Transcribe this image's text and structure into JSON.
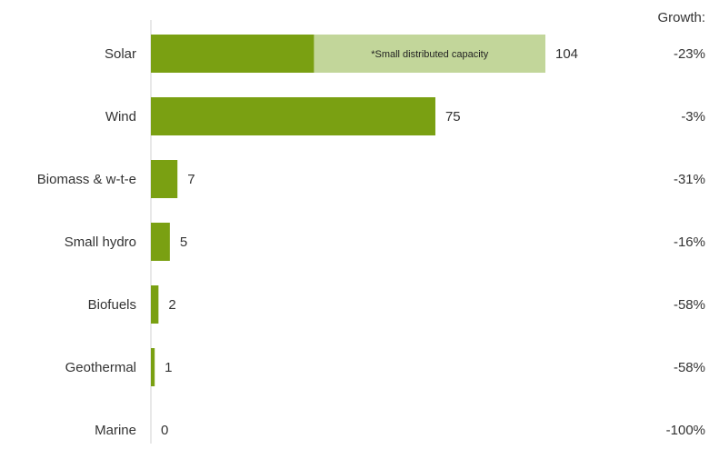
{
  "chart_data": {
    "type": "bar",
    "orientation": "horizontal",
    "stacked": true,
    "categories": [
      "Solar",
      "Wind",
      "Biomass & w-t-e",
      "Small hydro",
      "Biofuels",
      "Geothermal",
      "Marine"
    ],
    "series": [
      {
        "values": [
          43,
          75,
          7,
          5,
          2,
          1,
          0
        ],
        "color": "#7aa012"
      },
      {
        "name": "*Small distributed capacity",
        "values": [
          61,
          0,
          0,
          0,
          0,
          0,
          0
        ],
        "color": "#c2d69a"
      }
    ],
    "totals": [
      "104",
      "75",
      "7",
      "5",
      "2",
      "1",
      "0"
    ],
    "growth_header": "Growth:",
    "growth": [
      "-23%",
      "-3%",
      "-31%",
      "-16%",
      "-58%",
      "-58%",
      "-100%"
    ],
    "xlim": [
      0,
      104
    ],
    "grid": false,
    "legend": "inside-bar"
  }
}
